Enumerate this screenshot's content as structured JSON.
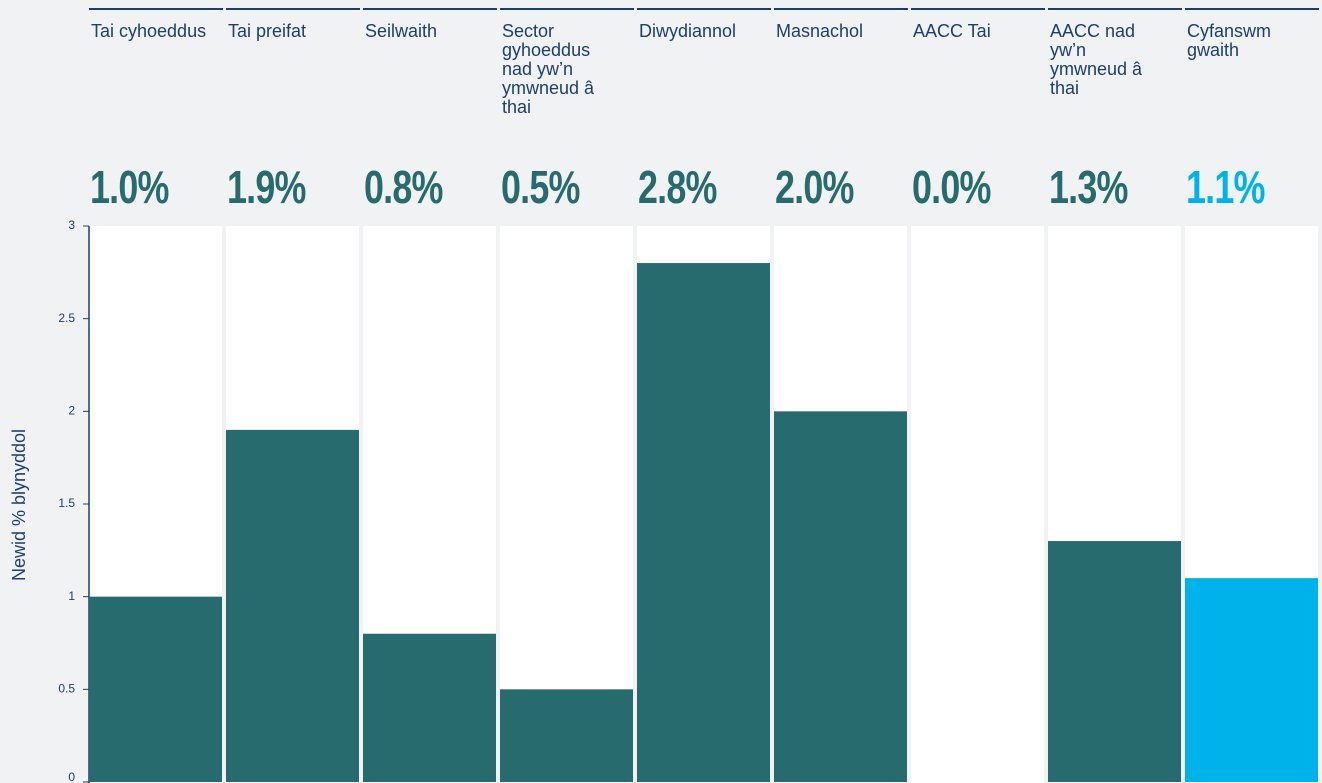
{
  "chart_data": {
    "type": "bar",
    "y_label": "Newid % blynyddol",
    "categories": [
      "Tai cyhoeddus",
      "Tai preifat",
      "Seilwaith",
      "Sector gyhoeddus nad yw’n ymwneud â thai",
      "Diwydiannol",
      "Masnachol",
      "AACC Tai",
      "AACC nad yw’n ymwneud â thai",
      "Cyfanswm gwaith"
    ],
    "values": [
      1.0,
      1.9,
      0.8,
      0.5,
      2.8,
      2.0,
      0.0,
      1.3,
      1.1
    ],
    "value_labels": [
      "1.0%",
      "1.9%",
      "0.8%",
      "0.5%",
      "2.8%",
      "2.0%",
      "0.0%",
      "1.3%",
      "1.1%"
    ],
    "colors": [
      "#276b6e",
      "#276b6e",
      "#276b6e",
      "#276b6e",
      "#276b6e",
      "#276b6e",
      "#276b6e",
      "#276b6e",
      "#00b2ea"
    ],
    "ylim": [
      0,
      3
    ],
    "yticks": [
      0,
      0.5,
      1,
      1.5,
      2,
      2.5,
      3
    ]
  }
}
